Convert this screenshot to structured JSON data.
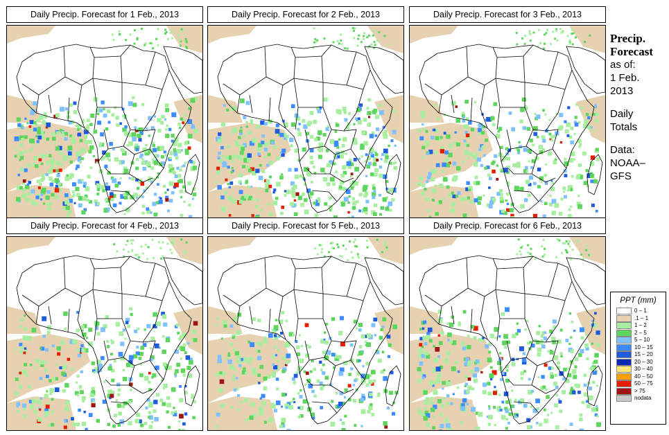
{
  "panels": [
    {
      "title": "Daily Precip. Forecast for  1 Feb., 2013",
      "intensity": 1.0
    },
    {
      "title": "Daily Precip. Forecast for  2 Feb., 2013",
      "intensity": 0.85
    },
    {
      "title": "Daily Precip. Forecast for  3 Feb., 2013",
      "intensity": 0.7
    },
    {
      "title": "Daily Precip. Forecast for  4 Feb., 2013",
      "intensity": 0.65
    },
    {
      "title": "Daily Precip. Forecast for  5 Feb., 2013",
      "intensity": 0.6
    },
    {
      "title": "Daily Precip. Forecast for  6 Feb., 2013",
      "intensity": 0.75
    }
  ],
  "side": {
    "heading_1": "Precip.",
    "heading_2": "Forecast",
    "asof_1": "as of:",
    "asof_2": "1 Feb.",
    "asof_3": "2013",
    "daily_1": "Daily",
    "daily_2": "Totals",
    "data_1": "Data:",
    "data_2": "NOAA–",
    "data_3": "GFS"
  },
  "legend": {
    "title": "PPT (mm)",
    "items": [
      {
        "label": "0 – 1",
        "color": "#ffffff"
      },
      {
        "label": ".1 – 1",
        "color": "#e6d2b0"
      },
      {
        "label": "1 – 2",
        "color": "#a8eea0"
      },
      {
        "label": "2 – 5",
        "color": "#5ed65e"
      },
      {
        "label": "5 – 10",
        "color": "#7fc0ff"
      },
      {
        "label": "10 – 15",
        "color": "#3c8cff"
      },
      {
        "label": "15 – 20",
        "color": "#1e5adc"
      },
      {
        "label": "20 – 30",
        "color": "#0a28b4"
      },
      {
        "label": "30 – 40",
        "color": "#ffe678"
      },
      {
        "label": "40 – 50",
        "color": "#ffa000"
      },
      {
        "label": "50 – 75",
        "color": "#e61e00"
      },
      {
        "label": "> 75",
        "color": "#a01414"
      },
      {
        "label": "nodata",
        "color": "#c8c8c8"
      }
    ]
  }
}
